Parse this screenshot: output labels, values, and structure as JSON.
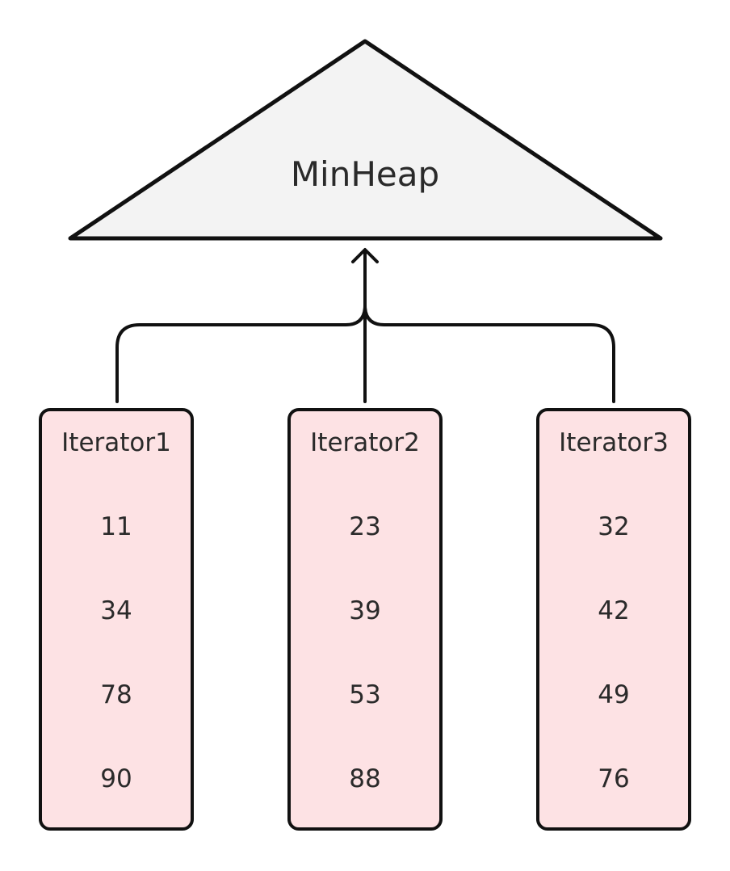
{
  "heap": {
    "label": "MinHeap"
  },
  "colors": {
    "heap_fill": "#f3f3f3",
    "iterator_fill": "#fde2e4",
    "stroke": "#111111",
    "text": "#2a2a2a"
  },
  "iterators": [
    {
      "title": "Iterator1",
      "values": [
        "11",
        "34",
        "78",
        "90"
      ]
    },
    {
      "title": "Iterator2",
      "values": [
        "23",
        "39",
        "53",
        "88"
      ]
    },
    {
      "title": "Iterator3",
      "values": [
        "32",
        "42",
        "49",
        "76"
      ]
    }
  ]
}
